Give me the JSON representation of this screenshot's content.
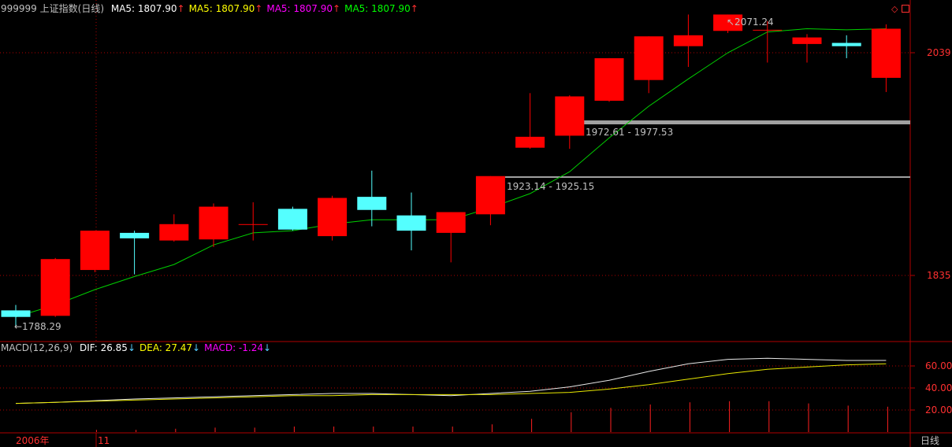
{
  "header": {
    "symbol": "999999",
    "name": "上证指数(日线)",
    "ma_items": [
      {
        "label": "MA5: 1807.90",
        "color": "#ffffff"
      },
      {
        "label": "MA5: 1807.90",
        "color": "#ffff00"
      },
      {
        "label": "MA5: 1807.90",
        "color": "#ff00ff"
      },
      {
        "label": "MA5: 1807.90",
        "color": "#00ff00"
      }
    ],
    "arrow_up_color": "#ff3030"
  },
  "macd_header": {
    "title": "MACD(12,26,9)",
    "items": [
      {
        "label": "DIF: 26.85",
        "color": "#ffffff"
      },
      {
        "label": "DEA: 27.47",
        "color": "#ffff00"
      },
      {
        "label": "MACD: -1.24",
        "color": "#ff00ff"
      }
    ],
    "arrow_down_color": "#55ccff"
  },
  "bottom_axis": {
    "labels": [
      "2006年",
      "11"
    ],
    "period": "日线"
  },
  "colors": {
    "up": "#ff0000",
    "down": "#54ffff",
    "ma_line": "#00d000",
    "grid": "#8b0000",
    "axis_text": "#ff3030",
    "dif": "#e8e8e8",
    "dea": "#e8e800",
    "macd_bar": "#ff2020",
    "band": "#a0a0a0"
  },
  "chart_data": {
    "type": "candlestick",
    "y_ticks": [
      1835,
      2039
    ],
    "candles": [
      {
        "o": 1803,
        "c": 1797,
        "h": 1808,
        "l": 1788.29
      },
      {
        "o": 1798,
        "c": 1850,
        "h": 1851,
        "l": 1797
      },
      {
        "o": 1840,
        "c": 1876,
        "h": 1876,
        "l": 1838
      },
      {
        "o": 1874,
        "c": 1869,
        "h": 1876,
        "l": 1836
      },
      {
        "o": 1867,
        "c": 1882,
        "h": 1891,
        "l": 1866
      },
      {
        "o": 1868,
        "c": 1898,
        "h": 1901,
        "l": 1861
      },
      {
        "o": 1882,
        "c": 1882,
        "h": 1902,
        "l": 1867
      },
      {
        "o": 1896,
        "c": 1877,
        "h": 1898,
        "l": 1876
      },
      {
        "o": 1871,
        "c": 1906,
        "h": 1908,
        "l": 1867
      },
      {
        "o": 1907,
        "c": 1895,
        "h": 1931,
        "l": 1880
      },
      {
        "o": 1890,
        "c": 1876,
        "h": 1911,
        "l": 1858
      },
      {
        "o": 1874,
        "c": 1893,
        "h": 1893,
        "l": 1847
      },
      {
        "o": 1891,
        "c": 1926,
        "h": 1926,
        "l": 1881
      },
      {
        "o": 1952,
        "c": 1962,
        "h": 2002,
        "l": 1951
      },
      {
        "o": 1963,
        "c": 1999,
        "h": 2000,
        "l": 1951
      },
      {
        "o": 1995,
        "c": 2034,
        "h": 2034,
        "l": 1994
      },
      {
        "o": 2014,
        "c": 2054,
        "h": 2054,
        "l": 2002
      },
      {
        "o": 2045,
        "c": 2055,
        "h": 2074,
        "l": 2026
      },
      {
        "o": 2059,
        "c": 2074,
        "h": 2074,
        "l": 2057
      },
      {
        "o": 2060,
        "c": 2060,
        "h": 2068,
        "l": 2030
      },
      {
        "o": 2047,
        "c": 2053,
        "h": 2056,
        "l": 2030
      },
      {
        "o": 2048,
        "c": 2045,
        "h": 2055,
        "l": 2034
      },
      {
        "o": 2016,
        "c": 2061,
        "h": 2065,
        "l": 2003
      }
    ],
    "ma_values": [
      1797,
      1808,
      1822,
      1834,
      1845,
      1863,
      1874,
      1876,
      1882,
      1886,
      1886,
      1886,
      1897,
      1910,
      1930,
      1961,
      1990,
      2015,
      2039,
      2058,
      2061,
      2060,
      2061
    ],
    "annotations": {
      "high": "2071.24",
      "low": "1788.29",
      "band_upper": "1972.61 - 1977.53",
      "band_lower": "1923.14 - 1925.15"
    },
    "macd": {
      "y_ticks": [
        "60.00",
        "40.00",
        "20.00"
      ],
      "dif": [
        26,
        27,
        28.5,
        30,
        31,
        32,
        33,
        34,
        35,
        35,
        34,
        33,
        35,
        37,
        41,
        47,
        55,
        62,
        66,
        67,
        66,
        65,
        65
      ],
      "dea": [
        26,
        27,
        28,
        29,
        30,
        31,
        32,
        33,
        33,
        34,
        34,
        34,
        34,
        35,
        36,
        39,
        43,
        48,
        53,
        57,
        59,
        61,
        62
      ],
      "bars": [
        0,
        0,
        2,
        2,
        3,
        4,
        4,
        5,
        5,
        5,
        5,
        5,
        7,
        12,
        18,
        22,
        25,
        27,
        28,
        28,
        26,
        24,
        23
      ]
    }
  }
}
